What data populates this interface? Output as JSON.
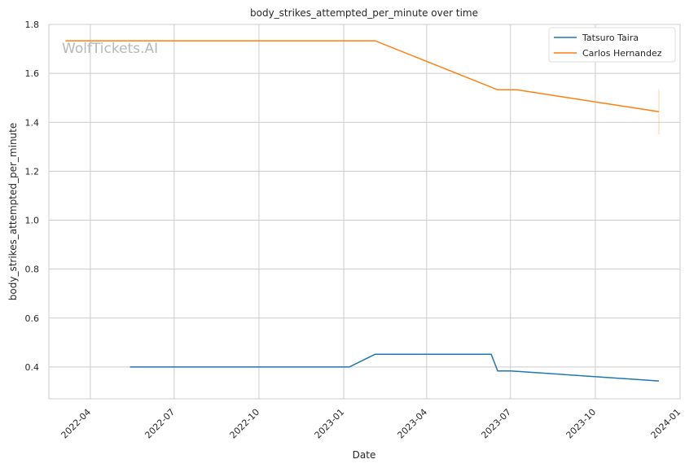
{
  "chart_data": {
    "type": "line",
    "title": "body_strikes_attempted_per_minute over time",
    "xlabel": "Date",
    "ylabel": "body_strikes_attempted_per_minute",
    "watermark": "WolfTickets.AI",
    "xlim": [
      "2022-02-15",
      "2024-01-01"
    ],
    "ylim": [
      0.27,
      1.8
    ],
    "x_ticks": [
      "2022-04",
      "2022-07",
      "2022-10",
      "2023-01",
      "2023-04",
      "2023-07",
      "2023-10",
      "2024-01"
    ],
    "y_ticks": [
      "0.4",
      "0.6",
      "0.8",
      "1.0",
      "1.2",
      "1.4",
      "1.6",
      "1.8"
    ],
    "grid": true,
    "legend_position": "top-right",
    "series": [
      {
        "name": "Tatsuro Taira",
        "color": "#1f77b4",
        "points": [
          {
            "x": "2022-05-14",
            "y": 0.4
          },
          {
            "x": "2023-01-07",
            "y": 0.4
          },
          {
            "x": "2023-02-04",
            "y": 0.452
          },
          {
            "x": "2023-06-10",
            "y": 0.452
          },
          {
            "x": "2023-06-17",
            "y": 0.384
          },
          {
            "x": "2023-07-01",
            "y": 0.384
          },
          {
            "x": "2023-12-09",
            "y": 0.343
          }
        ]
      },
      {
        "name": "Carlos Hernandez",
        "color": "#ff7f0e",
        "points": [
          {
            "x": "2022-03-05",
            "y": 1.733
          },
          {
            "x": "2023-02-04",
            "y": 1.733
          },
          {
            "x": "2023-06-17",
            "y": 1.533
          },
          {
            "x": "2023-07-08",
            "y": 1.533
          },
          {
            "x": "2023-12-09",
            "y": 1.443
          }
        ],
        "error_bar": {
          "x": "2023-12-09",
          "low": 1.35,
          "high": 1.535
        }
      }
    ]
  }
}
